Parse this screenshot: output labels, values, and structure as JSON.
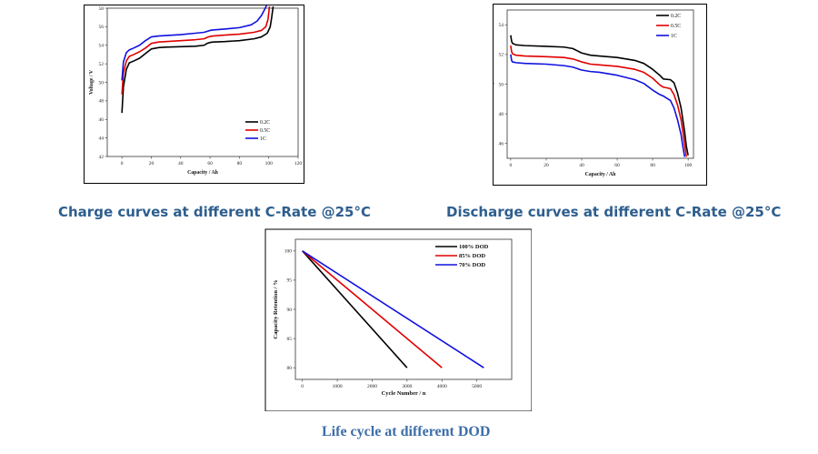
{
  "captions": {
    "charge": "Charge curves at different C-Rate @25°C",
    "discharge": "Discharge curves at different C-Rate @25°C",
    "life": "Life cycle at different DOD"
  },
  "chart_data": [
    {
      "id": "charge",
      "type": "line",
      "title": "",
      "xlabel": "Capacity / Ah",
      "ylabel": "Voltage / V",
      "xlim": [
        -10,
        120
      ],
      "ylim": [
        42,
        58
      ],
      "xticks": [
        0,
        20,
        40,
        60,
        80,
        100,
        120
      ],
      "yticks": [
        42,
        44,
        46,
        48,
        50,
        52,
        54,
        56,
        58
      ],
      "legend_position": "bottom-right",
      "series": [
        {
          "name": "0.2C",
          "color": "#000000",
          "x": [
            0,
            1,
            3,
            5,
            8,
            12,
            16,
            20,
            25,
            30,
            40,
            50,
            56,
            58,
            60,
            62,
            70,
            80,
            90,
            95,
            99,
            101,
            102,
            103
          ],
          "y": [
            46.7,
            49.5,
            51.4,
            52.1,
            52.3,
            52.6,
            53.1,
            53.6,
            53.75,
            53.8,
            53.85,
            53.9,
            54.0,
            54.2,
            54.3,
            54.35,
            54.4,
            54.5,
            54.7,
            54.9,
            55.3,
            56.0,
            57.0,
            58.2
          ]
        },
        {
          "name": "0.5C",
          "color": "#E00000",
          "x": [
            0,
            1,
            3,
            5,
            8,
            12,
            16,
            20,
            25,
            30,
            40,
            50,
            56,
            58,
            60,
            62,
            70,
            80,
            90,
            95,
            98,
            99.5,
            100.5
          ],
          "y": [
            48.7,
            51.0,
            52.3,
            52.8,
            53.0,
            53.3,
            53.7,
            54.2,
            54.35,
            54.4,
            54.5,
            54.6,
            54.7,
            54.85,
            54.95,
            55.0,
            55.1,
            55.2,
            55.4,
            55.6,
            56.0,
            56.8,
            58.2
          ]
        },
        {
          "name": "1C",
          "color": "#1010E0",
          "x": [
            0,
            1,
            3,
            5,
            8,
            12,
            16,
            20,
            25,
            30,
            40,
            50,
            56,
            58,
            60,
            62,
            70,
            80,
            88,
            92,
            95,
            97,
            98.5
          ],
          "y": [
            50.2,
            52.2,
            53.2,
            53.5,
            53.7,
            54.0,
            54.5,
            54.9,
            55.0,
            55.05,
            55.15,
            55.3,
            55.4,
            55.5,
            55.6,
            55.65,
            55.75,
            55.9,
            56.2,
            56.6,
            57.2,
            57.8,
            58.3
          ]
        }
      ]
    },
    {
      "id": "discharge",
      "type": "line",
      "title": "",
      "xlabel": "Capacity / Ah",
      "ylabel": "Voltage / V",
      "xlim": [
        -2,
        103
      ],
      "ylim": [
        45,
        55
      ],
      "xticks": [
        0,
        20,
        40,
        60,
        80,
        100
      ],
      "yticks": [
        46,
        48,
        50,
        52,
        54
      ],
      "legend_position": "top-right",
      "series": [
        {
          "name": "0.2C",
          "color": "#000000",
          "x": [
            0,
            0.5,
            1,
            3,
            8,
            20,
            30,
            35,
            40,
            45,
            50,
            60,
            70,
            75,
            80,
            84,
            86,
            90,
            92,
            94,
            96,
            97,
            98,
            99,
            100
          ],
          "y": [
            53.3,
            52.9,
            52.75,
            52.65,
            52.6,
            52.55,
            52.5,
            52.4,
            52.1,
            51.95,
            51.9,
            51.8,
            51.6,
            51.4,
            51.0,
            50.6,
            50.35,
            50.3,
            50.1,
            49.4,
            48.4,
            47.6,
            46.8,
            45.8,
            45.2
          ]
        },
        {
          "name": "0.5C",
          "color": "#E00000",
          "x": [
            0,
            0.5,
            1,
            3,
            8,
            20,
            30,
            35,
            40,
            45,
            50,
            60,
            70,
            75,
            80,
            84,
            86,
            90,
            92,
            94,
            96,
            97,
            98,
            99
          ],
          "y": [
            52.6,
            52.2,
            52.05,
            51.95,
            51.9,
            51.85,
            51.8,
            51.7,
            51.5,
            51.35,
            51.3,
            51.2,
            51.0,
            50.8,
            50.4,
            49.95,
            49.8,
            49.7,
            49.3,
            48.6,
            47.6,
            46.8,
            45.9,
            45.1
          ]
        },
        {
          "name": "1C",
          "color": "#1010E0",
          "x": [
            0,
            0.5,
            1,
            3,
            8,
            20,
            30,
            35,
            40,
            45,
            50,
            60,
            70,
            75,
            80,
            84,
            86,
            90,
            92,
            94,
            96,
            97,
            98
          ],
          "y": [
            52.0,
            51.6,
            51.5,
            51.45,
            51.4,
            51.35,
            51.25,
            51.15,
            50.95,
            50.85,
            50.8,
            50.6,
            50.3,
            50.05,
            49.6,
            49.3,
            49.2,
            48.9,
            48.4,
            47.6,
            46.6,
            45.8,
            45.1
          ]
        }
      ]
    },
    {
      "id": "life",
      "type": "line",
      "title": "",
      "xlabel": "Cycle Number  / n",
      "ylabel": "Capacity Retention / %",
      "xlim": [
        -200,
        6000
      ],
      "ylim": [
        78,
        102
      ],
      "xticks": [
        0,
        1000,
        2000,
        3000,
        4000,
        5000
      ],
      "yticks": [
        80,
        85,
        90,
        95,
        100
      ],
      "legend_position": "top-right",
      "series": [
        {
          "name": "100% DOD",
          "color": "#000000",
          "x": [
            0,
            3000
          ],
          "y": [
            100,
            80
          ]
        },
        {
          "name": "85% DOD",
          "color": "#E00000",
          "x": [
            0,
            4000
          ],
          "y": [
            100,
            80
          ]
        },
        {
          "name": "70% DOD",
          "color": "#1010E0",
          "x": [
            0,
            5200
          ],
          "y": [
            100,
            80
          ]
        }
      ]
    }
  ]
}
